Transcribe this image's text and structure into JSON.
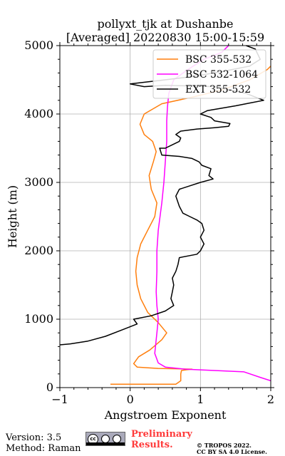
{
  "title_line1": "pollyxt_tjk at Dushanbe",
  "title_line2": "[Averaged] 20220830 15:00-15:59",
  "footer": {
    "version": "Version: 3.5",
    "method": "Method: Raman",
    "prelim_line1": "Preliminary",
    "prelim_line2": "Results.",
    "copyright_line1": "© TROPOS 2022.",
    "copyright_line2": "CC BY SA 4.0 License.",
    "license_icon": "cc-by-sa-icon"
  },
  "chart_data": {
    "type": "line",
    "xlabel": "Angstroem Exponent",
    "ylabel": "Height (m)",
    "xlim": [
      -1,
      2
    ],
    "ylim": [
      0,
      5000
    ],
    "xticks": [
      -1,
      0,
      1,
      2
    ],
    "xtick_labels": [
      "−1",
      "0",
      "1",
      "2"
    ],
    "yticks": [
      0,
      1000,
      2000,
      3000,
      4000,
      5000
    ],
    "ytick_labels": [
      "0",
      "1000",
      "2000",
      "3000",
      "4000",
      "5000"
    ],
    "grid": true,
    "legend_position": "top-right",
    "series": [
      {
        "name": "BSC 355-532",
        "color": "#ff7f0e",
        "points": [
          [
            -0.28,
            50
          ],
          [
            0.65,
            50
          ],
          [
            0.72,
            100
          ],
          [
            0.72,
            200
          ],
          [
            0.73,
            250
          ],
          [
            0.8,
            260
          ],
          [
            0.88,
            270
          ],
          [
            0.4,
            280
          ],
          [
            0.1,
            300
          ],
          [
            0.05,
            350
          ],
          [
            0.12,
            450
          ],
          [
            0.28,
            550
          ],
          [
            0.45,
            700
          ],
          [
            0.52,
            800
          ],
          [
            0.4,
            950
          ],
          [
            0.25,
            1100
          ],
          [
            0.15,
            1300
          ],
          [
            0.1,
            1500
          ],
          [
            0.08,
            1700
          ],
          [
            0.1,
            1900
          ],
          [
            0.15,
            2100
          ],
          [
            0.25,
            2300
          ],
          [
            0.35,
            2500
          ],
          [
            0.38,
            2700
          ],
          [
            0.3,
            2900
          ],
          [
            0.27,
            3100
          ],
          [
            0.33,
            3300
          ],
          [
            0.37,
            3450
          ],
          [
            0.32,
            3600
          ],
          [
            0.2,
            3700
          ],
          [
            0.14,
            3850
          ],
          [
            0.2,
            4000
          ],
          [
            0.45,
            4150
          ],
          [
            0.9,
            4250
          ],
          [
            1.3,
            4350
          ],
          [
            1.7,
            4500
          ],
          [
            1.95,
            4650
          ],
          [
            2.0,
            4700
          ]
        ]
      },
      {
        "name": "BSC 532-1064",
        "color": "#ff00ff",
        "points": [
          [
            2.0,
            100
          ],
          [
            1.85,
            150
          ],
          [
            1.62,
            230
          ],
          [
            1.2,
            250
          ],
          [
            0.78,
            270
          ],
          [
            0.5,
            300
          ],
          [
            0.4,
            360
          ],
          [
            0.35,
            500
          ],
          [
            0.38,
            800
          ],
          [
            0.4,
            1000
          ],
          [
            0.38,
            1200
          ],
          [
            0.37,
            1400
          ],
          [
            0.38,
            1700
          ],
          [
            0.38,
            2000
          ],
          [
            0.4,
            2300
          ],
          [
            0.45,
            2700
          ],
          [
            0.48,
            3000
          ],
          [
            0.5,
            3300
          ],
          [
            0.52,
            3600
          ],
          [
            0.52,
            3900
          ],
          [
            0.53,
            4100
          ],
          [
            0.55,
            4300
          ],
          [
            0.62,
            4500
          ],
          [
            0.82,
            4650
          ],
          [
            1.05,
            4800
          ],
          [
            1.3,
            4900
          ],
          [
            1.4,
            5000
          ]
        ]
      },
      {
        "name": "EXT 355-532",
        "color": "#000000",
        "points": [
          [
            -1.0,
            625
          ],
          [
            -0.85,
            640
          ],
          [
            -0.6,
            680
          ],
          [
            -0.35,
            750
          ],
          [
            -0.1,
            850
          ],
          [
            0.1,
            930
          ],
          [
            0.05,
            1000
          ],
          [
            0.3,
            1050
          ],
          [
            0.5,
            1120
          ],
          [
            0.62,
            1200
          ],
          [
            0.58,
            1300
          ],
          [
            0.6,
            1400
          ],
          [
            0.62,
            1500
          ],
          [
            0.6,
            1600
          ],
          [
            0.65,
            1700
          ],
          [
            0.68,
            1800
          ],
          [
            0.7,
            1900
          ],
          [
            0.95,
            1950
          ],
          [
            1.0,
            2000
          ],
          [
            1.05,
            2100
          ],
          [
            1.0,
            2200
          ],
          [
            1.05,
            2300
          ],
          [
            1.02,
            2400
          ],
          [
            0.95,
            2450
          ],
          [
            0.85,
            2500
          ],
          [
            0.75,
            2550
          ],
          [
            0.7,
            2650
          ],
          [
            0.65,
            2800
          ],
          [
            0.7,
            2900
          ],
          [
            0.85,
            2950
          ],
          [
            1.0,
            3000
          ],
          [
            1.18,
            3050
          ],
          [
            1.12,
            3100
          ],
          [
            1.15,
            3200
          ],
          [
            1.02,
            3250
          ],
          [
            0.98,
            3300
          ],
          [
            0.88,
            3350
          ],
          [
            0.7,
            3380
          ],
          [
            0.45,
            3400
          ],
          [
            0.42,
            3500
          ],
          [
            0.5,
            3500
          ],
          [
            0.6,
            3550
          ],
          [
            0.7,
            3600
          ],
          [
            0.72,
            3650
          ],
          [
            0.65,
            3700
          ],
          [
            0.72,
            3750
          ],
          [
            0.95,
            3780
          ],
          [
            1.2,
            3800
          ],
          [
            1.4,
            3820
          ],
          [
            1.42,
            3860
          ],
          [
            1.2,
            3900
          ],
          [
            1.15,
            3950
          ],
          [
            1.0,
            4000
          ],
          [
            1.1,
            4050
          ],
          [
            1.5,
            4120
          ],
          [
            1.7,
            4160
          ],
          [
            1.9,
            4200
          ],
          [
            1.65,
            4300
          ],
          [
            1.2,
            4400
          ],
          [
            0.5,
            4420
          ],
          [
            0.2,
            4400
          ],
          [
            0.0,
            4440
          ],
          [
            0.5,
            4500
          ],
          [
            0.9,
            4550
          ],
          [
            1.3,
            4620
          ],
          [
            1.7,
            4700
          ],
          [
            1.85,
            4800
          ],
          [
            1.78,
            4950
          ],
          [
            1.65,
            5000
          ]
        ]
      }
    ]
  }
}
